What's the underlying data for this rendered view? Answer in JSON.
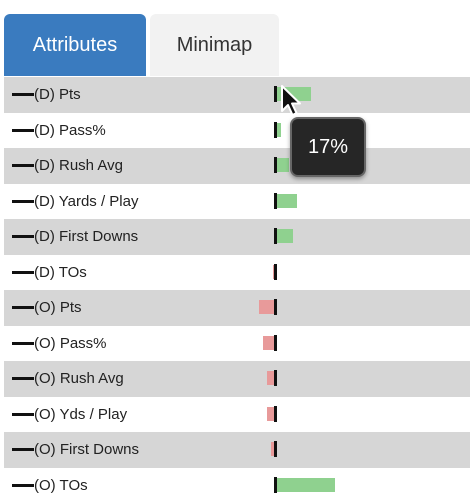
{
  "tabs": [
    {
      "label": "Attributes",
      "active": true
    },
    {
      "label": "Minimap",
      "active": false
    }
  ],
  "colors": {
    "tab_active": "#3a7bbf",
    "positive_bar": "#8fd18f",
    "negative_bar": "#e89a9a",
    "row_stripe": "#d6d6d6"
  },
  "rows": [
    {
      "label": "(D) Pts",
      "value": 0.17
    },
    {
      "label": "(D) Pass%",
      "value": 0.02
    },
    {
      "label": "(D) Rush Avg",
      "value": 0.06
    },
    {
      "label": "(D) Yards / Play",
      "value": 0.1
    },
    {
      "label": "(D) First Downs",
      "value": 0.08
    },
    {
      "label": "(D) TOs",
      "value": -0.02
    },
    {
      "label": "(O) Pts",
      "value": -0.09
    },
    {
      "label": "(O) Pass%",
      "value": -0.07
    },
    {
      "label": "(O) Rush Avg",
      "value": -0.05
    },
    {
      "label": "(O) Yds / Play",
      "value": -0.05
    },
    {
      "label": "(O) First Downs",
      "value": -0.03
    },
    {
      "label": "(O) TOs",
      "value": 0.29
    }
  ],
  "tooltip": {
    "text": "17%"
  }
}
